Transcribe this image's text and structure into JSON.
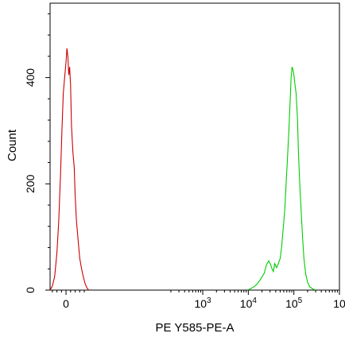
{
  "chart_data": {
    "type": "line",
    "xlabel": "PE Y585-PE-A",
    "ylabel": "Count",
    "x_scale": "biexponential",
    "xlim": [
      -0.35,
      6.0
    ],
    "ylim": [
      0,
      540
    ],
    "grid": false,
    "x_ticks": [
      {
        "value": 0,
        "label": "0",
        "sup": ""
      },
      {
        "value": 3,
        "label": "10",
        "sup": "3"
      },
      {
        "value": 4,
        "label": "10",
        "sup": "4"
      },
      {
        "value": 5,
        "label": "10",
        "sup": "5"
      },
      {
        "value": 6,
        "label": "10",
        "sup": ""
      }
    ],
    "y_ticks": [
      {
        "value": 0,
        "label": "0"
      },
      {
        "value": 200,
        "label": "200"
      },
      {
        "value": 400,
        "label": "400"
      }
    ],
    "series": [
      {
        "color": "#cc0000",
        "points": [
          [
            -0.35,
            0
          ],
          [
            -0.3,
            8
          ],
          [
            -0.25,
            25
          ],
          [
            -0.2,
            70
          ],
          [
            -0.16,
            130
          ],
          [
            -0.12,
            220
          ],
          [
            -0.09,
            300
          ],
          [
            -0.06,
            370
          ],
          [
            -0.03,
            400
          ],
          [
            0.0,
            430
          ],
          [
            0.02,
            455
          ],
          [
            0.04,
            440
          ],
          [
            0.06,
            405
          ],
          [
            0.08,
            420
          ],
          [
            0.1,
            385
          ],
          [
            0.12,
            310
          ],
          [
            0.15,
            260
          ],
          [
            0.18,
            230
          ],
          [
            0.2,
            180
          ],
          [
            0.23,
            130
          ],
          [
            0.27,
            90
          ],
          [
            0.3,
            60
          ],
          [
            0.34,
            40
          ],
          [
            0.38,
            25
          ],
          [
            0.42,
            12
          ],
          [
            0.46,
            4
          ],
          [
            0.5,
            0
          ]
        ]
      },
      {
        "color": "#00cc00",
        "points": [
          [
            3.99,
            0
          ],
          [
            4.05,
            3
          ],
          [
            4.1,
            5
          ],
          [
            4.15,
            8
          ],
          [
            4.2,
            12
          ],
          [
            4.25,
            18
          ],
          [
            4.3,
            25
          ],
          [
            4.35,
            32
          ],
          [
            4.4,
            48
          ],
          [
            4.45,
            55
          ],
          [
            4.48,
            50
          ],
          [
            4.52,
            40
          ],
          [
            4.55,
            35
          ],
          [
            4.58,
            50
          ],
          [
            4.62,
            42
          ],
          [
            4.66,
            50
          ],
          [
            4.7,
            60
          ],
          [
            4.73,
            80
          ],
          [
            4.76,
            110
          ],
          [
            4.8,
            150
          ],
          [
            4.83,
            200
          ],
          [
            4.86,
            250
          ],
          [
            4.89,
            300
          ],
          [
            4.92,
            360
          ],
          [
            4.94,
            400
          ],
          [
            4.96,
            420
          ],
          [
            4.98,
            415
          ],
          [
            5.0,
            405
          ],
          [
            5.02,
            390
          ],
          [
            5.05,
            370
          ],
          [
            5.08,
            320
          ],
          [
            5.1,
            260
          ],
          [
            5.13,
            200
          ],
          [
            5.16,
            150
          ],
          [
            5.19,
            100
          ],
          [
            5.22,
            60
          ],
          [
            5.26,
            30
          ],
          [
            5.3,
            15
          ],
          [
            5.35,
            6
          ],
          [
            5.42,
            2
          ],
          [
            5.48,
            0
          ]
        ]
      }
    ]
  }
}
